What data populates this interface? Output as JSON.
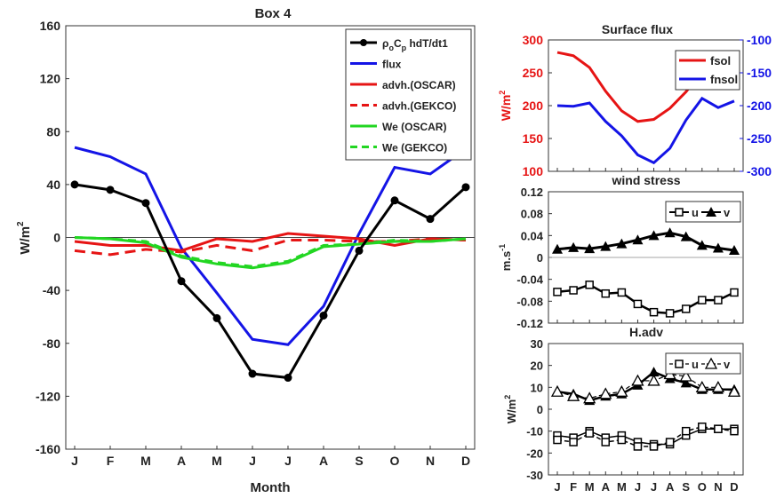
{
  "months": [
    "J",
    "F",
    "M",
    "A",
    "M",
    "J",
    "J",
    "A",
    "S",
    "O",
    "N",
    "D"
  ],
  "chart_data": [
    {
      "type": "line",
      "title": "Box 4",
      "xlabel": "Month",
      "ylabel": "W/m",
      "ylabel_sup": "2",
      "ylim": [
        -160,
        160
      ],
      "yticks": [
        -160,
        -120,
        -80,
        -40,
        0,
        40,
        80,
        120,
        160
      ],
      "legend_position": "top-right",
      "zero_line": true,
      "series": [
        {
          "name": "ρ",
          "name_sub1": "o",
          "name_mid": "C",
          "name_sub2": "p",
          "name_tail": " hdT/dt1",
          "color": "#000000",
          "dash": "solid",
          "marker": "circle",
          "values": [
            40,
            36,
            26,
            -33,
            -61,
            -103,
            -106,
            -59,
            -10,
            28,
            14,
            38
          ]
        },
        {
          "name": "flux",
          "color": "#1414e6",
          "dash": "solid",
          "marker": "none",
          "values": [
            68,
            61,
            48,
            -8,
            -42,
            -77,
            -81,
            -52,
            3,
            53,
            48,
            67
          ]
        },
        {
          "name": "advh.(OSCAR)",
          "color": "#e61414",
          "dash": "solid",
          "marker": "none",
          "values": [
            -3,
            -6,
            -6,
            -10,
            -1,
            -3,
            3,
            1,
            -1,
            -6,
            -1,
            -2
          ]
        },
        {
          "name": "advh.(GEKCO)",
          "color": "#e61414",
          "dash": "dashed",
          "marker": "none",
          "values": [
            -10,
            -13,
            -9,
            -11,
            -6,
            -10,
            -2,
            -2,
            -3,
            -3,
            -1,
            -2
          ]
        },
        {
          "name": "We (OSCAR)",
          "color": "#22d622",
          "dash": "solid",
          "marker": "none",
          "values": [
            0,
            -1,
            -4,
            -15,
            -20,
            -23,
            -19,
            -7,
            -5,
            -3,
            -3,
            -1
          ]
        },
        {
          "name": "We (GEKCO)",
          "color": "#22d622",
          "dash": "dashed",
          "marker": "none",
          "values": [
            0,
            -1,
            -3,
            -14,
            -19,
            -22,
            -18,
            -6,
            -5,
            -2,
            -3,
            -1
          ]
        }
      ]
    },
    {
      "type": "line",
      "title": "Surface flux",
      "ylabel": "W/m",
      "ylabel_sup": "2",
      "ylim_left": [
        100,
        300
      ],
      "yticks_left": [
        100,
        150,
        200,
        250,
        300
      ],
      "ylim_right": [
        -300,
        -100
      ],
      "yticks_right": [
        -100,
        -150,
        -200,
        -250,
        -300
      ],
      "legend_position": "top-right",
      "series": [
        {
          "name": "fsol",
          "axis": "left",
          "color": "#e61414",
          "values": [
            281,
            276,
            258,
            222,
            192,
            176,
            179,
            196,
            221,
            252,
            262,
            271
          ]
        },
        {
          "name": "fnsol",
          "axis": "right",
          "color": "#1414e6",
          "values": [
            -200,
            -201,
            -196,
            -224,
            -246,
            -275,
            -287,
            -265,
            -222,
            -189,
            -203,
            -193
          ]
        }
      ]
    },
    {
      "type": "line",
      "title": "wind stress",
      "ylabel": "m.s",
      "ylabel_sup": "-1",
      "ylim": [
        -0.12,
        0.12
      ],
      "yticks": [
        -0.12,
        -0.08,
        -0.04,
        0,
        0.04,
        0.08,
        0.12
      ],
      "ytick_labels": [
        "-0.12",
        "-0.08",
        "-0.04",
        "0",
        "0.04",
        "0.08",
        "0.12"
      ],
      "legend_position": "top-right",
      "series": [
        {
          "name": "u",
          "color": "#000000",
          "marker": "square",
          "values": [
            -0.063,
            -0.06,
            -0.05,
            -0.066,
            -0.064,
            -0.085,
            -0.1,
            -0.102,
            -0.094,
            -0.078,
            -0.078,
            -0.064
          ]
        },
        {
          "name": "v",
          "color": "#000000",
          "marker": "triangle",
          "values": [
            0.015,
            0.018,
            0.016,
            0.02,
            0.025,
            0.032,
            0.04,
            0.045,
            0.038,
            0.022,
            0.017,
            0.013
          ]
        }
      ]
    },
    {
      "type": "line",
      "title": "H.adv",
      "ylabel": "W/m",
      "ylabel_sup": "2",
      "ylim": [
        -30,
        30
      ],
      "yticks": [
        -30,
        -20,
        -10,
        0,
        10,
        20,
        30
      ],
      "legend_position": "top-right",
      "series": [
        {
          "name": "u",
          "color": "#000000",
          "marker": "square",
          "values": [
            -12,
            -13,
            -10,
            -13,
            -12,
            -15,
            -16,
            -16,
            -12,
            -9,
            -9,
            -9
          ]
        },
        {
          "name": "v",
          "color": "#000000",
          "marker": "triangle",
          "values": [
            8,
            7,
            4,
            6,
            7,
            11,
            17,
            14,
            12,
            9,
            9,
            9
          ]
        },
        {
          "name": "u",
          "color": "#000000",
          "marker": "square",
          "dash": "dashed",
          "values": [
            -14,
            -15,
            -11,
            -15,
            -14,
            -17,
            -17,
            -15,
            -10,
            -8,
            -9,
            -10
          ]
        },
        {
          "name": "v",
          "color": "#000000",
          "marker": "triangle",
          "dash": "dashed",
          "values": [
            8,
            6,
            5,
            7,
            8,
            13,
            13,
            16,
            15,
            10,
            10,
            8
          ]
        }
      ]
    }
  ]
}
